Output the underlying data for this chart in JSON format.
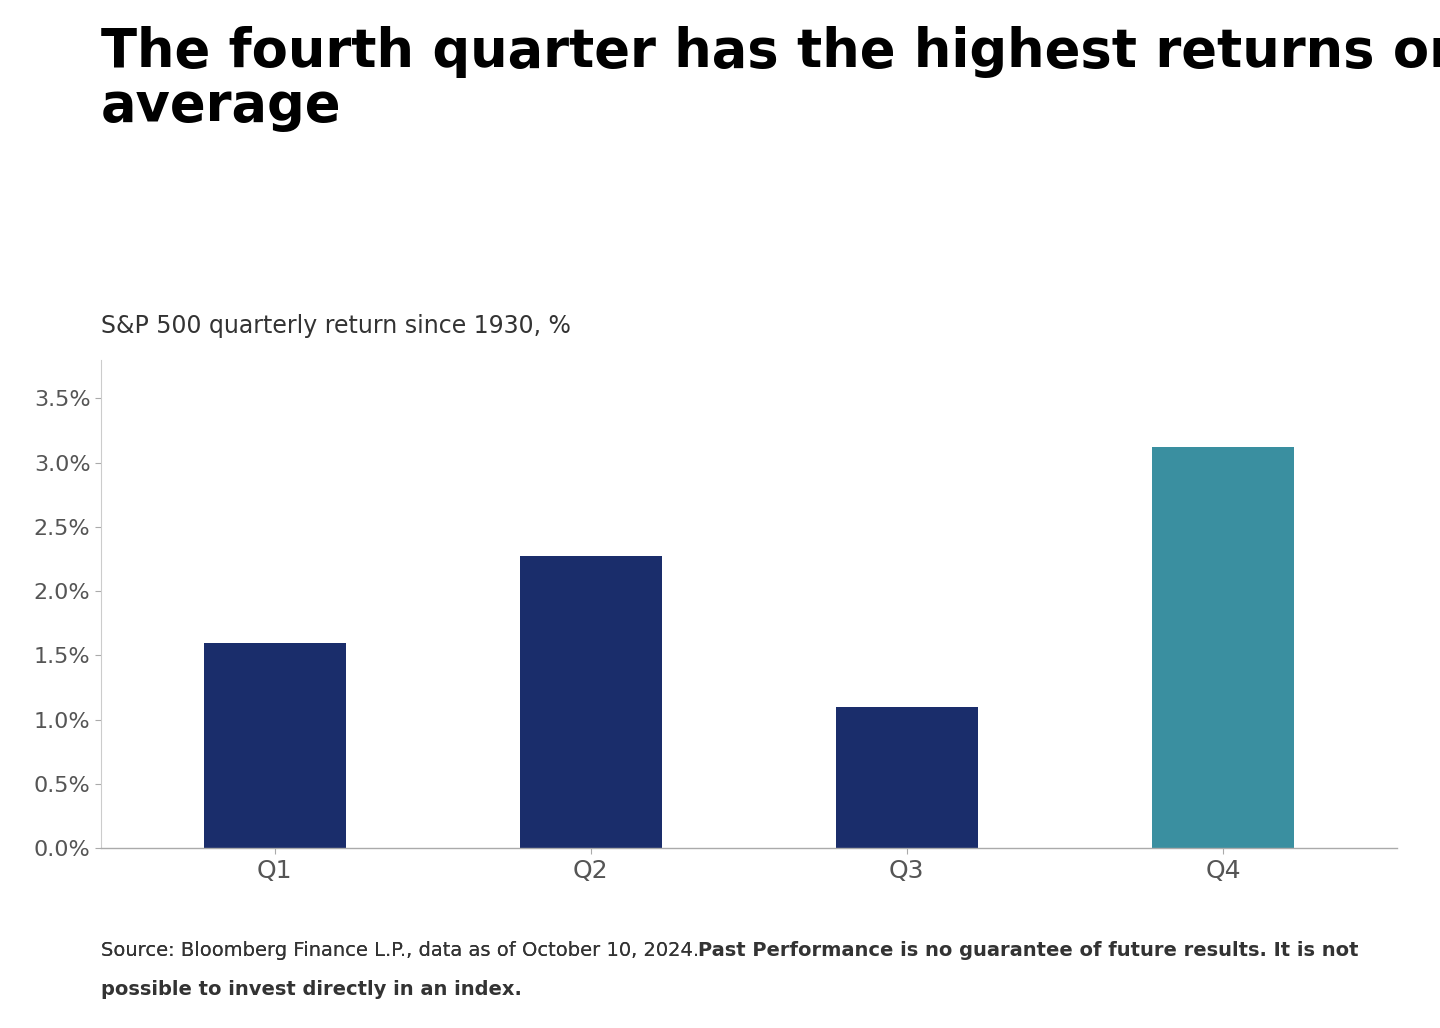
{
  "title": "The fourth quarter has the highest returns on\naverage",
  "subtitle": "S&P 500 quarterly return since 1930, %",
  "categories": [
    "Q1",
    "Q2",
    "Q3",
    "Q4"
  ],
  "values": [
    1.6,
    2.27,
    1.1,
    3.12
  ],
  "bar_colors": [
    "#1a2d6b",
    "#1a2d6b",
    "#1a2d6b",
    "#3a8fa0"
  ],
  "ylim": [
    0,
    0.038
  ],
  "yticks": [
    0.0,
    0.005,
    0.01,
    0.015,
    0.02,
    0.025,
    0.03,
    0.035
  ],
  "ytick_labels": [
    "0.0%",
    "0.5%",
    "1.0%",
    "1.5%",
    "2.0%",
    "2.5%",
    "3.0%",
    "3.5%"
  ],
  "background_color": "#ffffff",
  "title_fontsize": 38,
  "subtitle_fontsize": 17,
  "tick_fontsize": 16,
  "xtick_fontsize": 18,
  "footnote_regular": "Source: Bloomberg Finance L.P., data as of October 10, 2024. ",
  "footnote_bold": "Past Performance is no guarantee of future results. It is not\npossible to invest directly in an index.",
  "footnote_fontsize": 14
}
